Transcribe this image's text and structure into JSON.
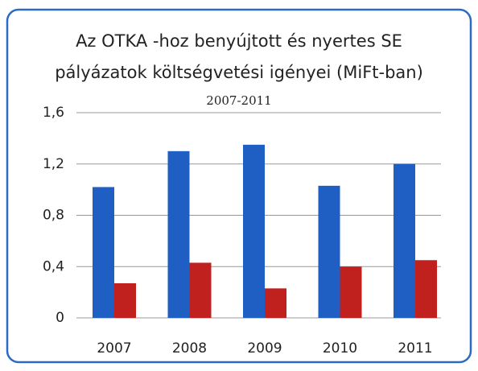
{
  "chart_data": {
    "type": "bar",
    "title": [
      "Az OTKA -hoz benyújtott és nyertes  SE",
      "pályázatok költségvetési igényei  (MiFt-ban)"
    ],
    "subtitle": "2007-2011",
    "categories": [
      "2007",
      "2008",
      "2009",
      "2010",
      "2011"
    ],
    "series": [
      {
        "color": "#1f5fc4",
        "values": [
          1.02,
          1.3,
          1.35,
          1.03,
          1.2
        ]
      },
      {
        "color": "#c0211f",
        "values": [
          0.27,
          0.43,
          0.23,
          0.4,
          0.45
        ]
      }
    ],
    "ylim": [
      0,
      1.6
    ],
    "yticks": [
      0,
      {
        "value": 0.4,
        "label": "0,4"
      },
      {
        "value": 0.8,
        "label": "0,8"
      },
      {
        "value": 1.2,
        "label": "1,2"
      },
      {
        "value": 1.6,
        "label": "1,6"
      }
    ],
    "grid": true
  }
}
